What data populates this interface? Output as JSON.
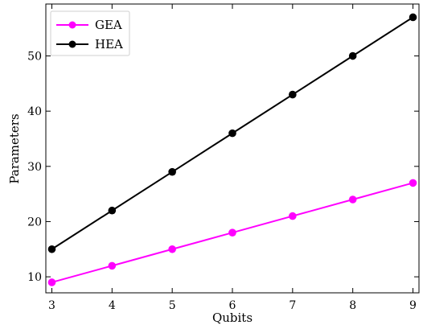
{
  "chart_data": {
    "type": "line",
    "x": [
      3,
      4,
      5,
      6,
      7,
      8,
      9
    ],
    "series": [
      {
        "name": "GEA",
        "values": [
          9,
          12,
          15,
          18,
          21,
          24,
          27
        ],
        "color": "#ff00ff",
        "marker": "circle"
      },
      {
        "name": "HEA",
        "values": [
          15,
          22,
          29,
          36,
          43,
          50,
          57
        ],
        "color": "#000000",
        "marker": "circle"
      }
    ],
    "title": "",
    "xlabel": "Qubits",
    "ylabel": "Parameters",
    "xlim": [
      2.9,
      9.1
    ],
    "ylim": [
      7.1,
      59.4
    ],
    "xticks": [
      3,
      4,
      5,
      6,
      7,
      8,
      9
    ],
    "yticks": [
      10,
      20,
      30,
      40,
      50
    ],
    "grid": false,
    "legend_position": "top-left"
  }
}
